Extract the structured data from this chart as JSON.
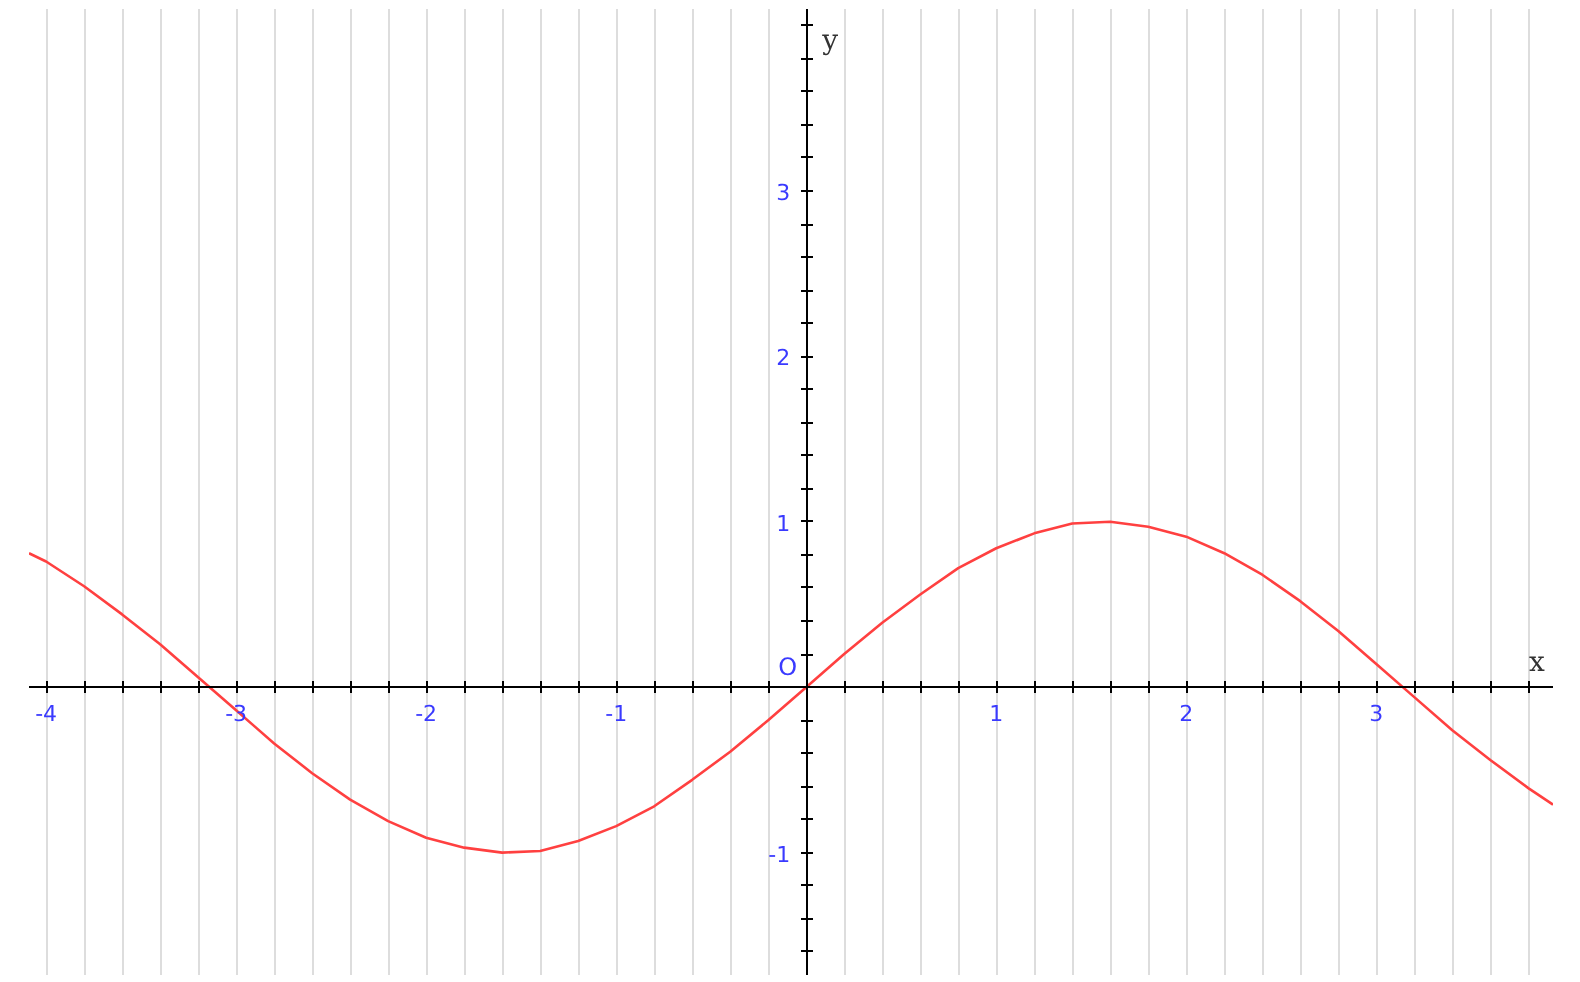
{
  "chart_data": {
    "type": "line",
    "xlabel": "x",
    "ylabel": "y",
    "x": [
      -4.09,
      -4.0,
      -3.8,
      -3.6,
      -3.4,
      -3.2,
      -3.0,
      -2.8,
      -2.6,
      -2.4,
      -2.2,
      -2.0,
      -1.8,
      -1.6,
      -1.4,
      -1.2,
      -1.0,
      -0.8,
      -0.6,
      -0.4,
      -0.2,
      0.0,
      0.2,
      0.4,
      0.6,
      0.8,
      1.0,
      1.2,
      1.4,
      1.6,
      1.8,
      2.0,
      2.2,
      2.4,
      2.6,
      2.8,
      3.0,
      3.2,
      3.4,
      3.6,
      3.8,
      3.93
    ],
    "series": [
      {
        "color": "#ff4040",
        "values": [
          0.81,
          0.76,
          0.61,
          0.44,
          0.26,
          0.06,
          -0.14,
          -0.34,
          -0.52,
          -0.68,
          -0.81,
          -0.91,
          -0.97,
          -1.0,
          -0.99,
          -0.93,
          -0.84,
          -0.72,
          -0.56,
          -0.39,
          -0.2,
          0.0,
          0.2,
          0.39,
          0.56,
          0.72,
          0.84,
          0.93,
          0.99,
          1.0,
          0.97,
          0.91,
          0.81,
          0.68,
          0.52,
          0.34,
          0.14,
          -0.06,
          -0.26,
          -0.44,
          -0.61,
          -0.71
        ]
      }
    ],
    "xlim": [
      -4.09,
      3.93
    ],
    "ylim": [
      -1.74,
      4.1
    ],
    "xticks": [
      {
        "value": -4,
        "label": "-4"
      },
      {
        "value": -3.8,
        "label": null
      },
      {
        "value": -3.6,
        "label": null
      },
      {
        "value": -3.4,
        "label": null
      },
      {
        "value": -3.2,
        "label": null
      },
      {
        "value": -3,
        "label": "-3"
      },
      {
        "value": -2.8,
        "label": null
      },
      {
        "value": -2.6,
        "label": null
      },
      {
        "value": -2.4,
        "label": null
      },
      {
        "value": -2.2,
        "label": null
      },
      {
        "value": -2,
        "label": "-2"
      },
      {
        "value": -1.8,
        "label": null
      },
      {
        "value": -1.6,
        "label": null
      },
      {
        "value": -1.4,
        "label": null
      },
      {
        "value": -1.2,
        "label": null
      },
      {
        "value": -1,
        "label": "-1"
      },
      {
        "value": -0.8,
        "label": null
      },
      {
        "value": -0.6,
        "label": null
      },
      {
        "value": -0.4,
        "label": null
      },
      {
        "value": -0.2,
        "label": null
      },
      {
        "value": 0,
        "label": null
      },
      {
        "value": 0.2,
        "label": null
      },
      {
        "value": 0.4,
        "label": null
      },
      {
        "value": 0.6,
        "label": null
      },
      {
        "value": 0.8,
        "label": null
      },
      {
        "value": 1,
        "label": "1"
      },
      {
        "value": 1.2,
        "label": null
      },
      {
        "value": 1.4,
        "label": null
      },
      {
        "value": 1.6,
        "label": null
      },
      {
        "value": 1.8,
        "label": null
      },
      {
        "value": 2,
        "label": "2"
      },
      {
        "value": 2.2,
        "label": null
      },
      {
        "value": 2.4,
        "label": null
      },
      {
        "value": 2.6,
        "label": null
      },
      {
        "value": 2.8,
        "label": null
      },
      {
        "value": 3,
        "label": "3"
      },
      {
        "value": 3.2,
        "label": null
      },
      {
        "value": 3.4,
        "label": null
      },
      {
        "value": 3.6,
        "label": null
      },
      {
        "value": 3.8,
        "label": null
      }
    ],
    "yticks": [
      {
        "value": -1.6,
        "label": null
      },
      {
        "value": -1.4,
        "label": null
      },
      {
        "value": -1.2,
        "label": null
      },
      {
        "value": -1,
        "label": "-1"
      },
      {
        "value": -0.8,
        "label": null
      },
      {
        "value": -0.6,
        "label": null
      },
      {
        "value": -0.4,
        "label": null
      },
      {
        "value": -0.2,
        "label": null
      },
      {
        "value": 0.2,
        "label": null
      },
      {
        "value": 0.4,
        "label": null
      },
      {
        "value": 0.6,
        "label": null
      },
      {
        "value": 0.8,
        "label": null
      },
      {
        "value": 1,
        "label": "1"
      },
      {
        "value": 1.2,
        "label": null
      },
      {
        "value": 1.4,
        "label": null
      },
      {
        "value": 1.6,
        "label": null
      },
      {
        "value": 1.8,
        "label": null
      },
      {
        "value": 2,
        "label": "2"
      },
      {
        "value": 2.2,
        "label": null
      },
      {
        "value": 2.4,
        "label": null
      },
      {
        "value": 2.6,
        "label": null
      },
      {
        "value": 2.8,
        "label": null
      },
      {
        "value": 3,
        "label": "3"
      },
      {
        "value": 3.2,
        "label": null
      },
      {
        "value": 3.4,
        "label": null
      },
      {
        "value": 3.6,
        "label": null
      },
      {
        "value": 3.8,
        "label": null
      },
      {
        "value": 4,
        "label": null
      }
    ],
    "annotations": [
      {
        "text": "O",
        "x": 0,
        "y": 0
      }
    ],
    "grid": "x",
    "marker": "none",
    "line_style": "solid"
  }
}
